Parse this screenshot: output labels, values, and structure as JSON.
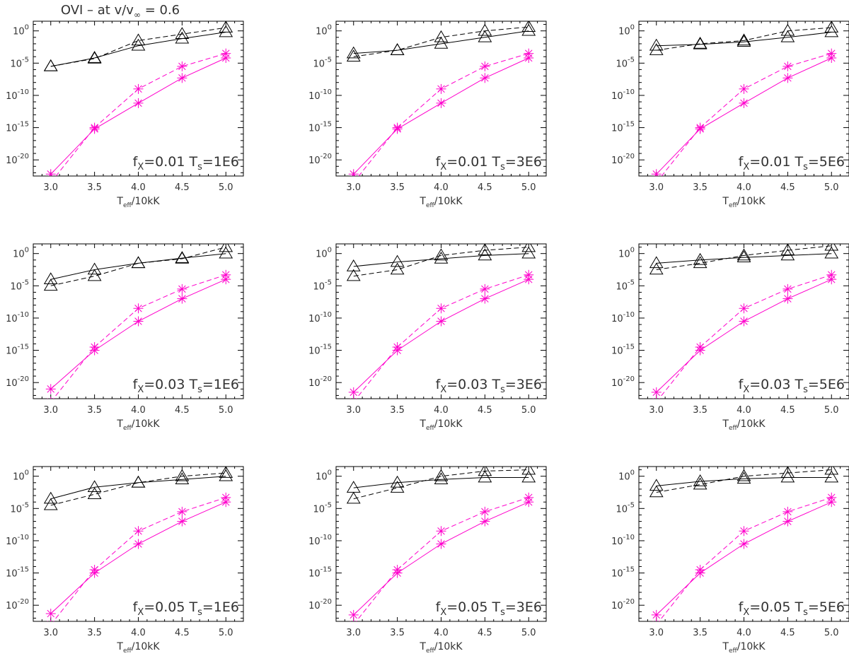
{
  "figure": {
    "title": "OVI – at v/v∞ = 0.6",
    "title_parts": {
      "prefix": "OVI  –  at v/v",
      "sub": "∞",
      "suffix": " = 0.6"
    }
  },
  "colors": {
    "black_series": "#000000",
    "magenta_series": "#ff00cc",
    "axes": "#000000"
  },
  "chart_data": [
    {
      "type": "line",
      "row": 0,
      "col": 0,
      "label": {
        "f": "0.01",
        "T": "1E6"
      },
      "xlabel": "Teff/10kK",
      "ylabel": "",
      "yscale": "log",
      "xlim": [
        2.8,
        5.2
      ],
      "ylim_exp": [
        -22.5,
        1.5
      ],
      "x": [
        3.0,
        3.5,
        4.0,
        4.5,
        5.0
      ],
      "xticks": [
        "3.0",
        "3.5",
        "4.0",
        "4.5",
        "5.0"
      ],
      "yticks": [
        "10^-20",
        "10^-15",
        "10^-10",
        "10^-5",
        "10^0"
      ],
      "series_exp": [
        {
          "marker": "triangle",
          "color": "black",
          "dash": "solid",
          "values": [
            -5.5,
            -4.2,
            -2.3,
            -1.2,
            -0.2
          ]
        },
        {
          "marker": "triangle",
          "color": "black",
          "dash": "dashed",
          "values": [
            -5.5,
            -4.3,
            -1.5,
            -0.5,
            0.5
          ]
        },
        {
          "marker": "asterisk",
          "color": "magenta",
          "dash": "solid",
          "values": [
            -22.2,
            -15.2,
            -11.2,
            -7.3,
            -4.2
          ]
        },
        {
          "marker": "asterisk",
          "color": "magenta",
          "dash": "dashed",
          "values": [
            -23.5,
            -15.0,
            -9.0,
            -5.5,
            -3.5
          ]
        }
      ]
    },
    {
      "type": "line",
      "row": 0,
      "col": 1,
      "label": {
        "f": "0.01",
        "T": "3E6"
      },
      "xlabel": "Teff/10kK",
      "ylabel": "",
      "yscale": "log",
      "xlim": [
        2.8,
        5.2
      ],
      "ylim_exp": [
        -22.5,
        1.5
      ],
      "x": [
        3.0,
        3.5,
        4.0,
        4.5,
        5.0
      ],
      "xticks": [
        "3.0",
        "3.5",
        "4.0",
        "4.5",
        "5.0"
      ],
      "yticks": [
        "10^-20",
        "10^-15",
        "10^-10",
        "10^-5",
        "10^0"
      ],
      "series_exp": [
        {
          "marker": "triangle",
          "color": "black",
          "dash": "solid",
          "values": [
            -3.5,
            -3.0,
            -2.0,
            -1.0,
            0.0
          ]
        },
        {
          "marker": "triangle",
          "color": "black",
          "dash": "dashed",
          "values": [
            -4.0,
            -3.0,
            -1.0,
            0.0,
            0.6
          ]
        },
        {
          "marker": "asterisk",
          "color": "magenta",
          "dash": "solid",
          "values": [
            -22.2,
            -15.2,
            -11.2,
            -7.3,
            -4.2
          ]
        },
        {
          "marker": "asterisk",
          "color": "magenta",
          "dash": "dashed",
          "values": [
            -23.5,
            -15.0,
            -9.0,
            -5.5,
            -3.5
          ]
        }
      ]
    },
    {
      "type": "line",
      "row": 0,
      "col": 2,
      "label": {
        "f": "0.01",
        "T": "5E6"
      },
      "xlabel": "Teff/10kK",
      "ylabel": "",
      "yscale": "log",
      "xlim": [
        2.8,
        5.2
      ],
      "ylim_exp": [
        -22.5,
        1.5
      ],
      "x": [
        3.0,
        3.5,
        4.0,
        4.5,
        5.0
      ],
      "xticks": [
        "3.0",
        "3.5",
        "4.0",
        "4.5",
        "5.0"
      ],
      "yticks": [
        "10^-20",
        "10^-15",
        "10^-10",
        "10^-5",
        "10^0"
      ],
      "series_exp": [
        {
          "marker": "triangle",
          "color": "black",
          "dash": "solid",
          "values": [
            -2.3,
            -2.1,
            -1.7,
            -1.0,
            -0.2
          ]
        },
        {
          "marker": "triangle",
          "color": "black",
          "dash": "dashed",
          "values": [
            -3.0,
            -2.0,
            -1.5,
            0.0,
            0.5
          ]
        },
        {
          "marker": "asterisk",
          "color": "magenta",
          "dash": "solid",
          "values": [
            -22.2,
            -15.2,
            -11.2,
            -7.3,
            -4.2
          ]
        },
        {
          "marker": "asterisk",
          "color": "magenta",
          "dash": "dashed",
          "values": [
            -23.5,
            -15.0,
            -9.0,
            -5.5,
            -3.5
          ]
        }
      ]
    },
    {
      "type": "line",
      "row": 1,
      "col": 0,
      "label": {
        "f": "0.03",
        "T": "1E6"
      },
      "xlabel": "Teff/10kK",
      "ylabel": "",
      "yscale": "log",
      "xlim": [
        2.8,
        5.2
      ],
      "ylim_exp": [
        -22.5,
        1.5
      ],
      "x": [
        3.0,
        3.5,
        4.0,
        4.5,
        5.0
      ],
      "xticks": [
        "3.0",
        "3.5",
        "4.0",
        "4.5",
        "5.0"
      ],
      "yticks": [
        "10^-20",
        "10^-15",
        "10^-10",
        "10^-5",
        "10^0"
      ],
      "series_exp": [
        {
          "marker": "triangle",
          "color": "black",
          "dash": "solid",
          "values": [
            -4.0,
            -2.5,
            -1.5,
            -0.7,
            0.0
          ]
        },
        {
          "marker": "triangle",
          "color": "black",
          "dash": "dashed",
          "values": [
            -5.0,
            -3.5,
            -1.5,
            -0.8,
            1.0
          ]
        },
        {
          "marker": "asterisk",
          "color": "magenta",
          "dash": "solid",
          "values": [
            -21.0,
            -15.0,
            -10.5,
            -7.0,
            -4.0
          ]
        },
        {
          "marker": "asterisk",
          "color": "magenta",
          "dash": "dashed",
          "values": [
            -23.0,
            -14.5,
            -8.5,
            -5.5,
            -3.3
          ]
        }
      ]
    },
    {
      "type": "line",
      "row": 1,
      "col": 1,
      "label": {
        "f": "0.03",
        "T": "3E6"
      },
      "xlabel": "Teff/10kK",
      "ylabel": "",
      "yscale": "log",
      "xlim": [
        2.8,
        5.2
      ],
      "ylim_exp": [
        -22.5,
        1.5
      ],
      "x": [
        3.0,
        3.5,
        4.0,
        4.5,
        5.0
      ],
      "xticks": [
        "3.0",
        "3.5",
        "4.0",
        "4.5",
        "5.0"
      ],
      "yticks": [
        "10^-20",
        "10^-15",
        "10^-10",
        "10^-5",
        "10^0"
      ],
      "series_exp": [
        {
          "marker": "triangle",
          "color": "black",
          "dash": "solid",
          "values": [
            -2.0,
            -1.3,
            -0.8,
            -0.3,
            0.0
          ]
        },
        {
          "marker": "triangle",
          "color": "black",
          "dash": "dashed",
          "values": [
            -3.5,
            -2.5,
            -0.3,
            0.5,
            1.0
          ]
        },
        {
          "marker": "asterisk",
          "color": "magenta",
          "dash": "solid",
          "values": [
            -21.5,
            -15.0,
            -10.5,
            -7.0,
            -4.0
          ]
        },
        {
          "marker": "asterisk",
          "color": "magenta",
          "dash": "dashed",
          "values": [
            -23.0,
            -14.5,
            -8.5,
            -5.5,
            -3.3
          ]
        }
      ]
    },
    {
      "type": "line",
      "row": 1,
      "col": 2,
      "label": {
        "f": "0.03",
        "T": "5E6"
      },
      "xlabel": "Teff/10kK",
      "ylabel": "",
      "yscale": "log",
      "xlim": [
        2.8,
        5.2
      ],
      "ylim_exp": [
        -22.5,
        1.5
      ],
      "x": [
        3.0,
        3.5,
        4.0,
        4.5,
        5.0
      ],
      "xticks": [
        "3.0",
        "3.5",
        "4.0",
        "4.5",
        "5.0"
      ],
      "yticks": [
        "10^-20",
        "10^-15",
        "10^-10",
        "10^-5",
        "10^0"
      ],
      "series_exp": [
        {
          "marker": "triangle",
          "color": "black",
          "dash": "solid",
          "values": [
            -1.5,
            -1.0,
            -0.6,
            -0.3,
            0.0
          ]
        },
        {
          "marker": "triangle",
          "color": "black",
          "dash": "dashed",
          "values": [
            -2.5,
            -1.5,
            -0.3,
            0.5,
            1.2
          ]
        },
        {
          "marker": "asterisk",
          "color": "magenta",
          "dash": "solid",
          "values": [
            -21.5,
            -15.0,
            -10.5,
            -7.0,
            -4.0
          ]
        },
        {
          "marker": "asterisk",
          "color": "magenta",
          "dash": "dashed",
          "values": [
            -23.0,
            -14.5,
            -8.5,
            -5.5,
            -3.3
          ]
        }
      ]
    },
    {
      "type": "line",
      "row": 2,
      "col": 0,
      "label": {
        "f": "0.05",
        "T": "1E6"
      },
      "xlabel": "Teff/10kK",
      "ylabel": "",
      "yscale": "log",
      "xlim": [
        2.8,
        5.2
      ],
      "ylim_exp": [
        -22.5,
        1.5
      ],
      "x": [
        3.0,
        3.5,
        4.0,
        4.5,
        5.0
      ],
      "xticks": [
        "3.0",
        "3.5",
        "4.0",
        "4.5",
        "5.0"
      ],
      "yticks": [
        "10^-20",
        "10^-15",
        "10^-10",
        "10^-5",
        "10^0"
      ],
      "series_exp": [
        {
          "marker": "triangle",
          "color": "black",
          "dash": "solid",
          "values": [
            -3.5,
            -1.7,
            -1.0,
            -0.5,
            0.0
          ]
        },
        {
          "marker": "triangle",
          "color": "black",
          "dash": "dashed",
          "values": [
            -4.5,
            -2.8,
            -1.0,
            0.0,
            0.5
          ]
        },
        {
          "marker": "asterisk",
          "color": "magenta",
          "dash": "solid",
          "values": [
            -21.3,
            -15.0,
            -10.5,
            -7.0,
            -4.0
          ]
        },
        {
          "marker": "asterisk",
          "color": "magenta",
          "dash": "dashed",
          "values": [
            -23.0,
            -14.5,
            -8.5,
            -5.5,
            -3.3
          ]
        }
      ]
    },
    {
      "type": "line",
      "row": 2,
      "col": 1,
      "label": {
        "f": "0.05",
        "T": "3E6"
      },
      "xlabel": "Teff/10kK",
      "ylabel": "",
      "yscale": "log",
      "xlim": [
        2.8,
        5.2
      ],
      "ylim_exp": [
        -22.5,
        1.5
      ],
      "x": [
        3.0,
        3.5,
        4.0,
        4.5,
        5.0
      ],
      "xticks": [
        "3.0",
        "3.5",
        "4.0",
        "4.5",
        "5.0"
      ],
      "yticks": [
        "10^-20",
        "10^-15",
        "10^-10",
        "10^-5",
        "10^0"
      ],
      "series_exp": [
        {
          "marker": "triangle",
          "color": "black",
          "dash": "solid",
          "values": [
            -1.8,
            -1.0,
            -0.5,
            -0.2,
            -0.2
          ]
        },
        {
          "marker": "triangle",
          "color": "black",
          "dash": "dashed",
          "values": [
            -3.5,
            -1.8,
            0.0,
            0.8,
            1.0
          ]
        },
        {
          "marker": "asterisk",
          "color": "magenta",
          "dash": "solid",
          "values": [
            -21.5,
            -15.0,
            -10.5,
            -7.0,
            -4.0
          ]
        },
        {
          "marker": "asterisk",
          "color": "magenta",
          "dash": "dashed",
          "values": [
            -23.0,
            -14.5,
            -8.5,
            -5.5,
            -3.3
          ]
        }
      ]
    },
    {
      "type": "line",
      "row": 2,
      "col": 2,
      "label": {
        "f": "0.05",
        "T": "5E6"
      },
      "xlabel": "Teff/10kK",
      "ylabel": "",
      "yscale": "log",
      "xlim": [
        2.8,
        5.2
      ],
      "ylim_exp": [
        -22.5,
        1.5
      ],
      "x": [
        3.0,
        3.5,
        4.0,
        4.5,
        5.0
      ],
      "xticks": [
        "3.0",
        "3.5",
        "4.0",
        "4.5",
        "5.0"
      ],
      "yticks": [
        "10^-20",
        "10^-15",
        "10^-10",
        "10^-5",
        "10^0"
      ],
      "series_exp": [
        {
          "marker": "triangle",
          "color": "black",
          "dash": "solid",
          "values": [
            -1.5,
            -0.8,
            -0.4,
            -0.2,
            -0.2
          ]
        },
        {
          "marker": "triangle",
          "color": "black",
          "dash": "dashed",
          "values": [
            -2.5,
            -1.3,
            0.0,
            0.5,
            1.0
          ]
        },
        {
          "marker": "asterisk",
          "color": "magenta",
          "dash": "solid",
          "values": [
            -21.5,
            -15.0,
            -10.5,
            -7.0,
            -4.0
          ]
        },
        {
          "marker": "asterisk",
          "color": "magenta",
          "dash": "dashed",
          "values": [
            -23.0,
            -14.5,
            -8.5,
            -5.5,
            -3.3
          ]
        }
      ]
    }
  ]
}
